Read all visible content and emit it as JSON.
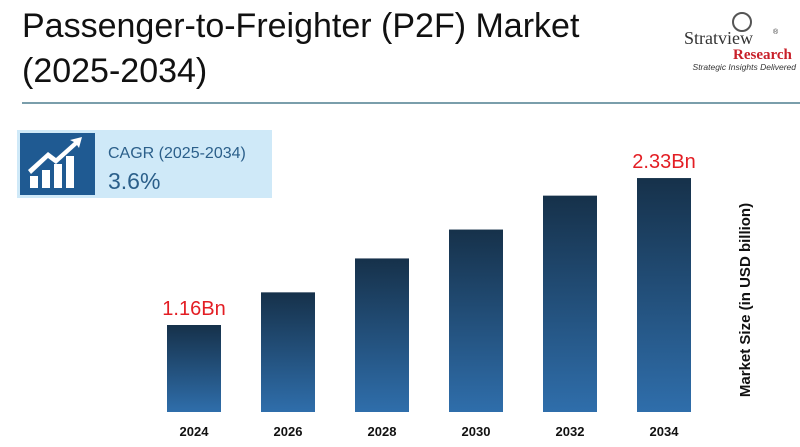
{
  "chart_data": {
    "type": "bar",
    "title": "Passenger-to-Freighter (P2F) Market (2025-2034)",
    "logo": {
      "name": "Stratview",
      "mark": "®",
      "sub": "Research",
      "tagline": "Strategic Insights Delivered"
    },
    "cagr": {
      "label": "CAGR (2025-2034)",
      "value": "3.6%"
    },
    "y_label": "Market Size (in USD billion)",
    "categories": [
      "2024",
      "2026",
      "2028",
      "2030",
      "2032",
      "2034"
    ],
    "values": [
      1.16,
      1.42,
      1.69,
      1.92,
      2.19,
      2.33
    ],
    "value_labels": [
      "1.16Bn",
      null,
      null,
      null,
      null,
      "2.33Bn"
    ],
    "value_label_color": "#e31e24"
  }
}
